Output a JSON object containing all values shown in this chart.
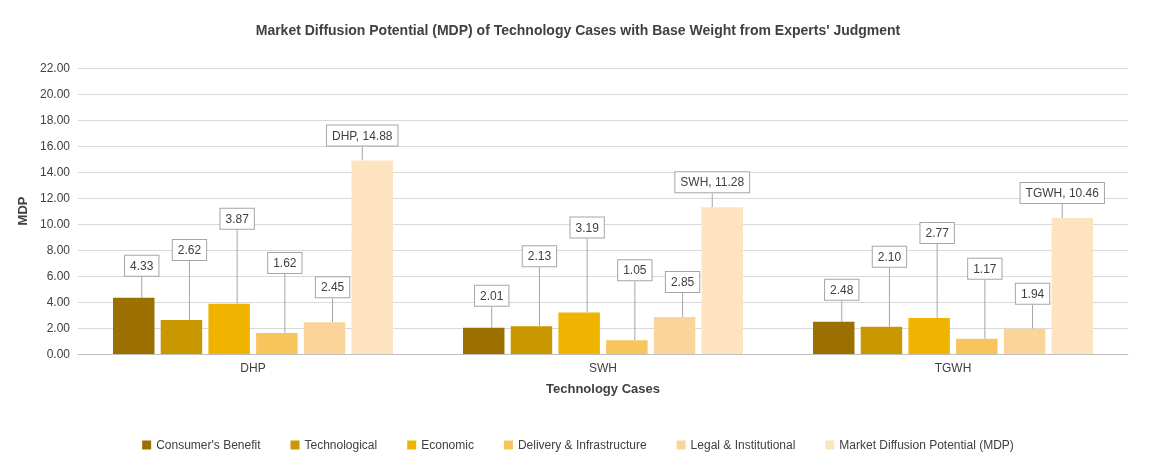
{
  "chart_data": {
    "type": "bar",
    "title": "Market Diffusion Potential (MDP) of Technology Cases with Base Weight from Experts' Judgment",
    "xlabel": "Technology Cases",
    "ylabel": "MDP",
    "categories": [
      "DHP",
      "SWH",
      "TGWH"
    ],
    "series": [
      {
        "name": "Consumer's Benefit",
        "color": "#9c7000",
        "values": [
          4.33,
          2.01,
          2.48
        ],
        "value_labels": [
          "4.33",
          "2.01",
          "2.48"
        ]
      },
      {
        "name": "Technological",
        "color": "#c99700",
        "values": [
          2.62,
          2.13,
          2.1
        ],
        "value_labels": [
          "2.62",
          "2.13",
          "2.10"
        ]
      },
      {
        "name": "Economic",
        "color": "#f0b400",
        "values": [
          3.87,
          3.19,
          2.77
        ],
        "value_labels": [
          "3.87",
          "3.19",
          "2.77"
        ]
      },
      {
        "name": "Delivery & Infrastructure",
        "color": "#f8c45c",
        "values": [
          1.62,
          1.05,
          1.17
        ],
        "value_labels": [
          "1.62",
          "1.05",
          "1.17"
        ]
      },
      {
        "name": "Legal & Institutional",
        "color": "#fbd49a",
        "values": [
          2.45,
          2.85,
          1.94
        ],
        "value_labels": [
          "2.45",
          "2.85",
          "1.94"
        ]
      },
      {
        "name": "Market Diffusion Potential (MDP)",
        "color": "#fde3c0",
        "values": [
          14.88,
          11.28,
          10.46
        ],
        "value_labels": [
          "DHP, 14.88",
          "SWH, 11.28",
          "TGWH, 10.46"
        ]
      }
    ],
    "ylim": [
      0,
      22
    ],
    "yticks": [
      {
        "value": 0,
        "label": "0.00"
      },
      {
        "value": 2,
        "label": "2.00"
      },
      {
        "value": 4,
        "label": "4.00"
      },
      {
        "value": 6,
        "label": "6.00"
      },
      {
        "value": 8,
        "label": "8.00"
      },
      {
        "value": 10,
        "label": "10.00"
      },
      {
        "value": 12,
        "label": "12.00"
      },
      {
        "value": 14,
        "label": "14.00"
      },
      {
        "value": 16,
        "label": "16.00"
      },
      {
        "value": 18,
        "label": "18.00"
      },
      {
        "value": 20,
        "label": "20.00"
      },
      {
        "value": 22,
        "label": "22.00"
      }
    ],
    "grid": "y",
    "legend": "bottom"
  }
}
